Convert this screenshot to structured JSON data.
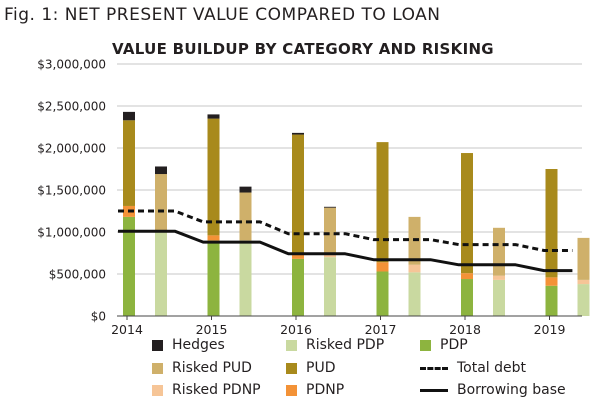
{
  "figure": {
    "caption": "Fig. 1:  NET PRESENT VALUE COMPARED TO LOAN",
    "title": "VALUE BUILDUP BY CATEGORY AND RISKING"
  },
  "colors": {
    "pdp": "#8db43f",
    "risked_pdp": "#c9d9a0",
    "pdnp": "#f39237",
    "risked_pdnp": "#f6c597",
    "pud": "#a88a1c",
    "risked_pud": "#cfb06a",
    "hedges": "#231f20",
    "lines": "#111111",
    "grid": "#b5b5b5",
    "text": "#231f20"
  },
  "chart_data": {
    "type": "bar",
    "stacked": true,
    "title": "VALUE BUILDUP BY CATEGORY AND RISKING",
    "y_ticks": [
      "$0",
      "$500,000",
      "$1,000,000",
      "$1,500,000",
      "$2,000,000",
      "$2,500,000",
      "$3,000,000"
    ],
    "ylim": [
      0,
      3000000
    ],
    "x_ticks": [
      "2014",
      "2015",
      "2016",
      "2017",
      "2018",
      "2019"
    ],
    "grid": true,
    "legend_position": "bottom",
    "bars": [
      {
        "period": "2014",
        "kind": "unrisked",
        "segments": [
          1180000,
          130000,
          1020000,
          100000
        ]
      },
      {
        "period": "2014",
        "kind": "risked",
        "segments": [
          1020000,
          0,
          670000,
          90000
        ]
      },
      {
        "period": "2015",
        "kind": "unrisked",
        "segments": [
          900000,
          60000,
          1390000,
          50000
        ]
      },
      {
        "period": "2015",
        "kind": "risked",
        "segments": [
          900000,
          0,
          570000,
          70000
        ]
      },
      {
        "period": "2016",
        "kind": "unrisked",
        "segments": [
          680000,
          60000,
          1420000,
          20000
        ]
      },
      {
        "period": "2016",
        "kind": "risked",
        "segments": [
          700000,
          30000,
          560000,
          10000
        ]
      },
      {
        "period": "2017",
        "kind": "unrisked",
        "segments": [
          530000,
          110000,
          1430000,
          0
        ]
      },
      {
        "period": "2017",
        "kind": "risked",
        "segments": [
          520000,
          90000,
          570000,
          0
        ]
      },
      {
        "period": "2018",
        "kind": "unrisked",
        "segments": [
          440000,
          70000,
          1430000,
          0
        ]
      },
      {
        "period": "2018",
        "kind": "risked",
        "segments": [
          430000,
          50000,
          570000,
          0
        ]
      },
      {
        "period": "2019",
        "kind": "unrisked",
        "segments": [
          360000,
          100000,
          1290000,
          0
        ]
      },
      {
        "period": "2019",
        "kind": "risked",
        "segments": [
          380000,
          50000,
          500000,
          0
        ]
      }
    ],
    "segment_order": [
      "PDP",
      "PDNP",
      "PUD",
      "Hedges"
    ],
    "series": [
      {
        "name": "Total debt",
        "style": "dashed",
        "values": [
          1250000,
          1250000,
          1250000,
          1120000,
          1120000,
          1120000,
          980000,
          980000,
          980000,
          910000,
          910000,
          910000,
          850000,
          850000,
          850000,
          780000,
          780000
        ]
      },
      {
        "name": "Borrowing base",
        "style": "solid",
        "values": [
          1010000,
          1010000,
          1010000,
          880000,
          880000,
          880000,
          740000,
          740000,
          740000,
          670000,
          670000,
          670000,
          610000,
          610000,
          610000,
          540000,
          540000
        ]
      }
    ]
  },
  "legend": [
    {
      "label": "Hedges",
      "kind": "box",
      "color": "#231f20"
    },
    {
      "label": "Risked PDP",
      "kind": "box",
      "color": "#c9d9a0"
    },
    {
      "label": "PDP",
      "kind": "box",
      "color": "#8db43f"
    },
    {
      "label": "Risked PUD",
      "kind": "box",
      "color": "#cfb06a"
    },
    {
      "label": "PUD",
      "kind": "box",
      "color": "#a88a1c"
    },
    {
      "label": "Total debt",
      "kind": "dashed",
      "color": "#111111"
    },
    {
      "label": "Risked PDNP",
      "kind": "box",
      "color": "#f6c597"
    },
    {
      "label": "PDNP",
      "kind": "box",
      "color": "#f39237"
    },
    {
      "label": "Borrowing base",
      "kind": "solid",
      "color": "#111111"
    }
  ]
}
